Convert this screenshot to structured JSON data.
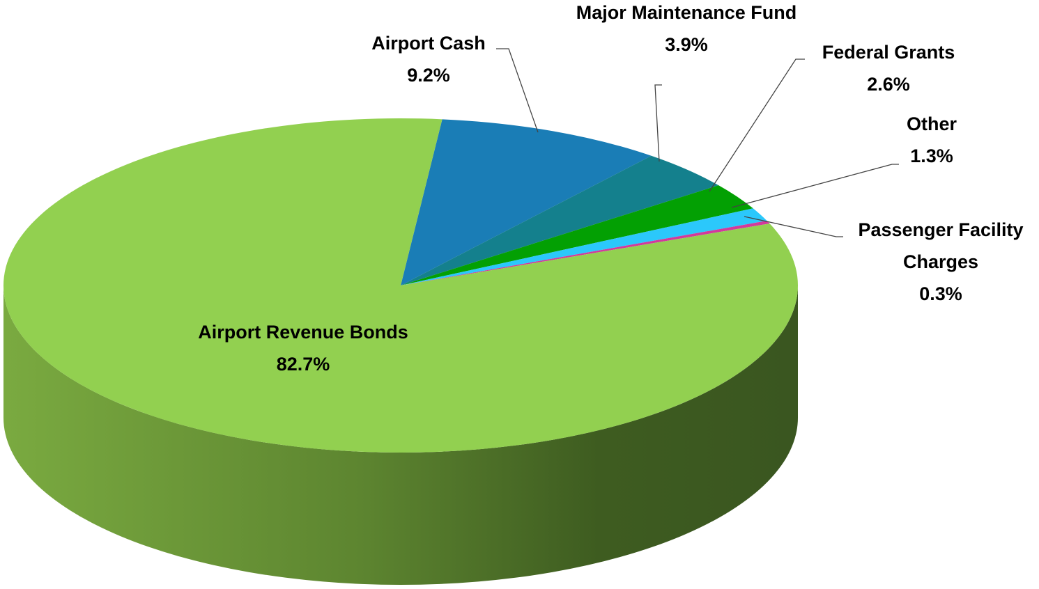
{
  "chart_data": {
    "type": "pie",
    "categories": [
      "Airport Cash",
      "Major Maintenance Fund",
      "Federal Grants",
      "Other",
      "Passenger Facility Charges",
      "Airport Revenue Bonds"
    ],
    "values": [
      9.2,
      3.9,
      2.6,
      1.3,
      0.3,
      82.7
    ],
    "value_labels": [
      "9.2%",
      "3.9%",
      "2.6%",
      "1.3%",
      "0.3%",
      "82.7%"
    ],
    "colors": [
      "#1a7db6",
      "#14808d",
      "#03a003",
      "#2bc8fb",
      "#d23a9c",
      "#92d050"
    ]
  }
}
